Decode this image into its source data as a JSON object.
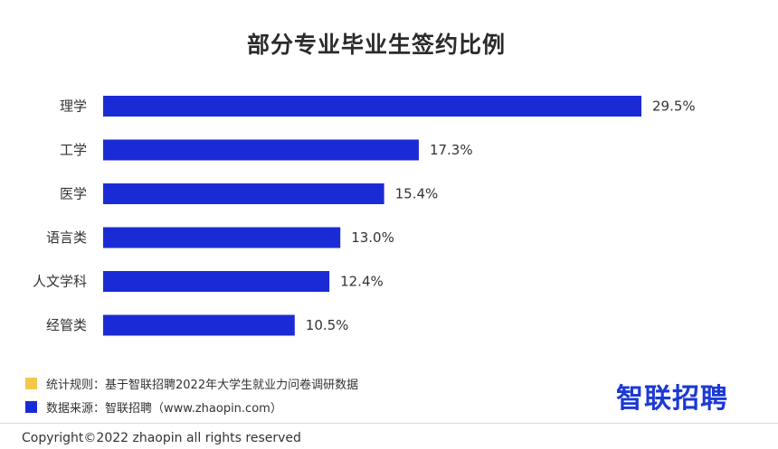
{
  "title": "部分专业毕业生签约比例",
  "chart_data": {
    "type": "bar",
    "orientation": "horizontal",
    "categories": [
      "理学",
      "工学",
      "医学",
      "语言类",
      "人文学科",
      "经管类"
    ],
    "values": [
      29.5,
      17.3,
      15.4,
      13.0,
      12.4,
      10.5
    ],
    "value_labels": [
      "29.5%",
      "17.3%",
      "15.4%",
      "13.0%",
      "12.4%",
      "10.5%"
    ],
    "title": "部分专业毕业生签约比例",
    "xlabel": "",
    "ylabel": "",
    "xlim": [
      0,
      30
    ],
    "grid": false,
    "bar_color": "#1a2bd6"
  },
  "legend": [
    {
      "color": "#f2c94c",
      "text": "统计规则：基于智联招聘2022年大学生就业力问卷调研数据"
    },
    {
      "color": "#1a2bd6",
      "text": "数据来源：智联招聘（www.zhaopin.com）"
    }
  ],
  "logo": "智联招聘",
  "copyright": "Copyright©2022 zhaopin all rights reserved"
}
